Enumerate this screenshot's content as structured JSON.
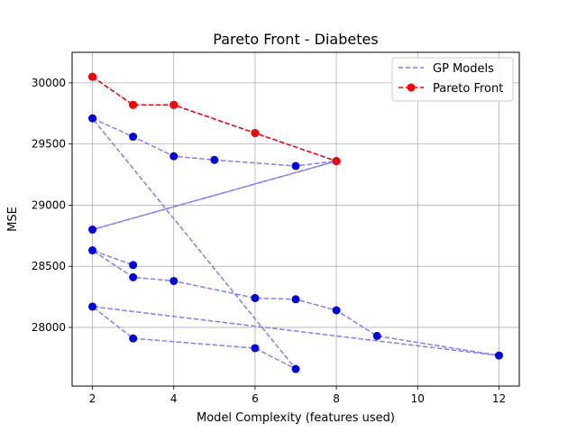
{
  "chart_data": {
    "type": "line",
    "title": "Pareto Front - Diabetes",
    "xlabel": "Model Complexity (features used)",
    "ylabel": "MSE",
    "xlim": [
      1.5,
      12.5
    ],
    "ylim": [
      27520,
      30250
    ],
    "xticks": [
      2,
      4,
      6,
      8,
      10,
      12
    ],
    "yticks": [
      28000,
      28500,
      29000,
      29500,
      30000
    ],
    "grid": true,
    "legend_position": "top-right",
    "series": [
      {
        "name": "GP Models",
        "style": "dashed",
        "line_color": "#7f7ff5",
        "marker_color": "#0000e6",
        "points": [
          [
            2,
            30050
          ],
          [
            3,
            29820
          ],
          [
            4,
            29820
          ],
          [
            6,
            29590
          ],
          [
            8,
            29360
          ],
          [
            2,
            28800
          ],
          [
            8,
            29360
          ],
          [
            7,
            29320
          ],
          [
            5,
            29370
          ],
          [
            4,
            29400
          ],
          [
            3,
            29560
          ],
          [
            2,
            29710
          ],
          [
            7,
            27660
          ],
          [
            6,
            27830
          ],
          [
            3,
            27910
          ],
          [
            2,
            28170
          ],
          [
            12,
            27770
          ],
          [
            9,
            27930
          ],
          [
            8,
            28140
          ],
          [
            7,
            28230
          ],
          [
            6,
            28240
          ],
          [
            4,
            28380
          ],
          [
            3,
            28410
          ],
          [
            2,
            28630
          ],
          [
            3,
            28510
          ]
        ]
      },
      {
        "name": "Pareto Front",
        "style": "dashed",
        "line_color": "#ff0000",
        "marker_color": "#ff0000",
        "points": [
          [
            2,
            30050
          ],
          [
            3,
            29820
          ],
          [
            4,
            29820
          ],
          [
            6,
            29590
          ],
          [
            8,
            29360
          ]
        ]
      }
    ]
  }
}
